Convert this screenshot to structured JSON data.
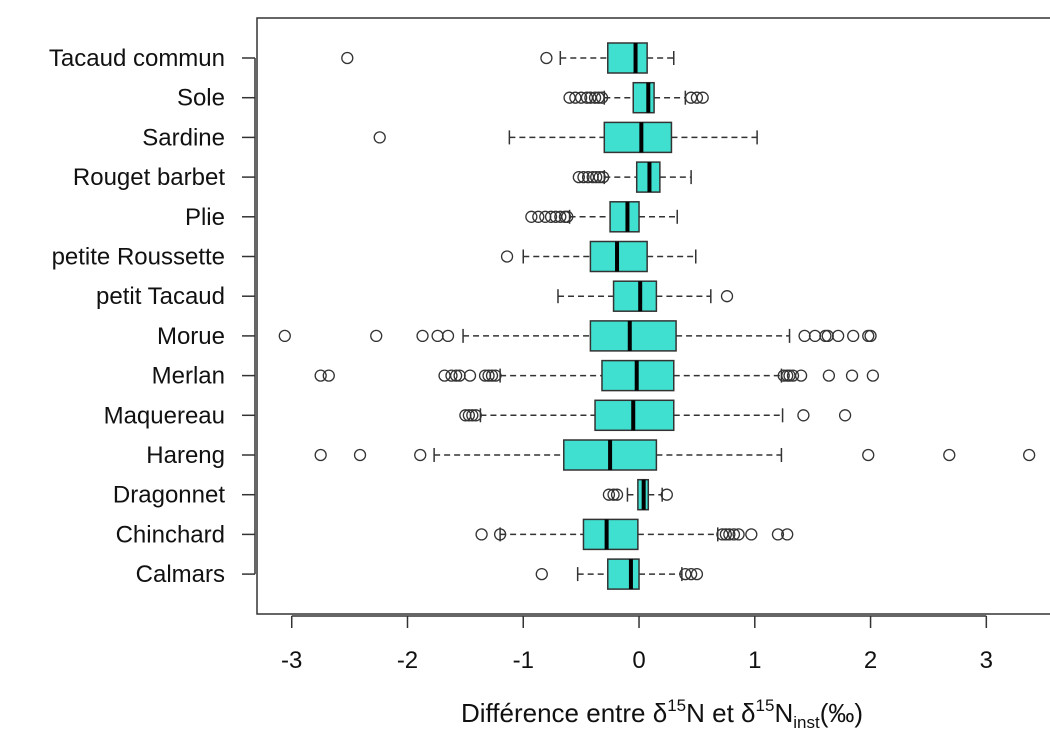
{
  "chart_data": {
    "type": "boxplot",
    "orientation": "horizontal",
    "xlabel": {
      "prefix": "Différence entre δ",
      "sup1": "15",
      "mid": "N et δ",
      "sup2": "15",
      "n": "N",
      "sub": "inst",
      "suffix": "(‰)"
    },
    "xlim": [
      -3.3,
      3.55
    ],
    "xticks": [
      -3,
      -2,
      -1,
      0,
      1,
      2,
      3
    ],
    "grid": false,
    "box_color": "#40E0D0",
    "categories": [
      "Tacaud commun",
      "Sole",
      "Sardine",
      "Rouget barbet",
      "Plie",
      "petite Roussette",
      "petit Tacaud",
      "Morue",
      "Merlan",
      "Maquereau",
      "Hareng",
      "Dragonnet",
      "Chinchard",
      "Calmars"
    ],
    "series": [
      {
        "label": "Tacaud commun",
        "whisker_low": -0.68,
        "q1": -0.27,
        "median": -0.03,
        "q3": 0.07,
        "whisker_high": 0.3,
        "outliers": [
          -2.52,
          -0.8
        ]
      },
      {
        "label": "Sole",
        "whisker_low": -0.3,
        "q1": -0.05,
        "median": 0.08,
        "q3": 0.13,
        "whisker_high": 0.4,
        "outliers": [
          -0.6,
          -0.55,
          -0.5,
          -0.45,
          -0.42,
          -0.38,
          -0.35,
          -0.32,
          0.45,
          0.5,
          0.55
        ]
      },
      {
        "label": "Sardine",
        "whisker_low": -1.12,
        "q1": -0.3,
        "median": 0.02,
        "q3": 0.28,
        "whisker_high": 1.02,
        "outliers": [
          -2.24
        ]
      },
      {
        "label": "Rouget barbet",
        "whisker_low": -0.3,
        "q1": -0.02,
        "median": 0.09,
        "q3": 0.18,
        "whisker_high": 0.45,
        "outliers": [
          -0.52,
          -0.48,
          -0.44,
          -0.4,
          -0.37,
          -0.34,
          -0.31
        ]
      },
      {
        "label": "Plie",
        "whisker_low": -0.6,
        "q1": -0.25,
        "median": -0.1,
        "q3": 0.0,
        "whisker_high": 0.33,
        "outliers": [
          -0.93,
          -0.87,
          -0.81,
          -0.76,
          -0.72,
          -0.68,
          -0.64,
          -0.62
        ]
      },
      {
        "label": "petite Roussette",
        "whisker_low": -1.0,
        "q1": -0.42,
        "median": -0.19,
        "q3": 0.07,
        "whisker_high": 0.49,
        "outliers": [
          -1.14
        ]
      },
      {
        "label": "petit Tacaud",
        "whisker_low": -0.7,
        "q1": -0.22,
        "median": 0.01,
        "q3": 0.15,
        "whisker_high": 0.62,
        "outliers": [
          0.76
        ]
      },
      {
        "label": "Morue",
        "whisker_low": -1.52,
        "q1": -0.42,
        "median": -0.08,
        "q3": 0.32,
        "whisker_high": 1.3,
        "outliers": [
          -3.06,
          -2.27,
          -1.87,
          -1.74,
          -1.65,
          1.43,
          1.52,
          1.61,
          1.63,
          1.72,
          1.85,
          1.98,
          2.0
        ]
      },
      {
        "label": "Merlan",
        "whisker_low": -1.2,
        "q1": -0.32,
        "median": -0.02,
        "q3": 0.3,
        "whisker_high": 1.23,
        "outliers": [
          -2.75,
          -2.68,
          -1.68,
          -1.62,
          -1.58,
          -1.55,
          -1.46,
          -1.33,
          -1.3,
          -1.27,
          -1.24,
          1.25,
          1.28,
          1.3,
          1.33,
          1.4,
          1.64,
          1.84,
          2.02
        ]
      },
      {
        "label": "Maquereau",
        "whisker_low": -1.37,
        "q1": -0.38,
        "median": -0.05,
        "q3": 0.3,
        "whisker_high": 1.24,
        "outliers": [
          -1.5,
          -1.47,
          -1.44,
          -1.41,
          1.42,
          1.78
        ]
      },
      {
        "label": "Hareng",
        "whisker_low": -1.77,
        "q1": -0.65,
        "median": -0.25,
        "q3": 0.15,
        "whisker_high": 1.23,
        "outliers": [
          -2.75,
          -2.41,
          -1.89,
          1.98,
          2.68,
          3.37
        ]
      },
      {
        "label": "Dragonnet",
        "whisker_low": -0.1,
        "q1": -0.01,
        "median": 0.04,
        "q3": 0.08,
        "whisker_high": 0.2,
        "outliers": [
          -0.26,
          -0.22,
          -0.19,
          0.24
        ]
      },
      {
        "label": "Chinchard",
        "whisker_low": -1.2,
        "q1": -0.48,
        "median": -0.28,
        "q3": -0.01,
        "whisker_high": 0.68,
        "outliers": [
          -1.36,
          -1.2,
          0.72,
          0.75,
          0.78,
          0.82,
          0.86,
          0.97,
          1.2,
          1.28
        ]
      },
      {
        "label": "Calmars",
        "whisker_low": -0.53,
        "q1": -0.27,
        "median": -0.07,
        "q3": 0.0,
        "whisker_high": 0.37,
        "outliers": [
          -0.84,
          0.4,
          0.45,
          0.5
        ]
      }
    ]
  }
}
